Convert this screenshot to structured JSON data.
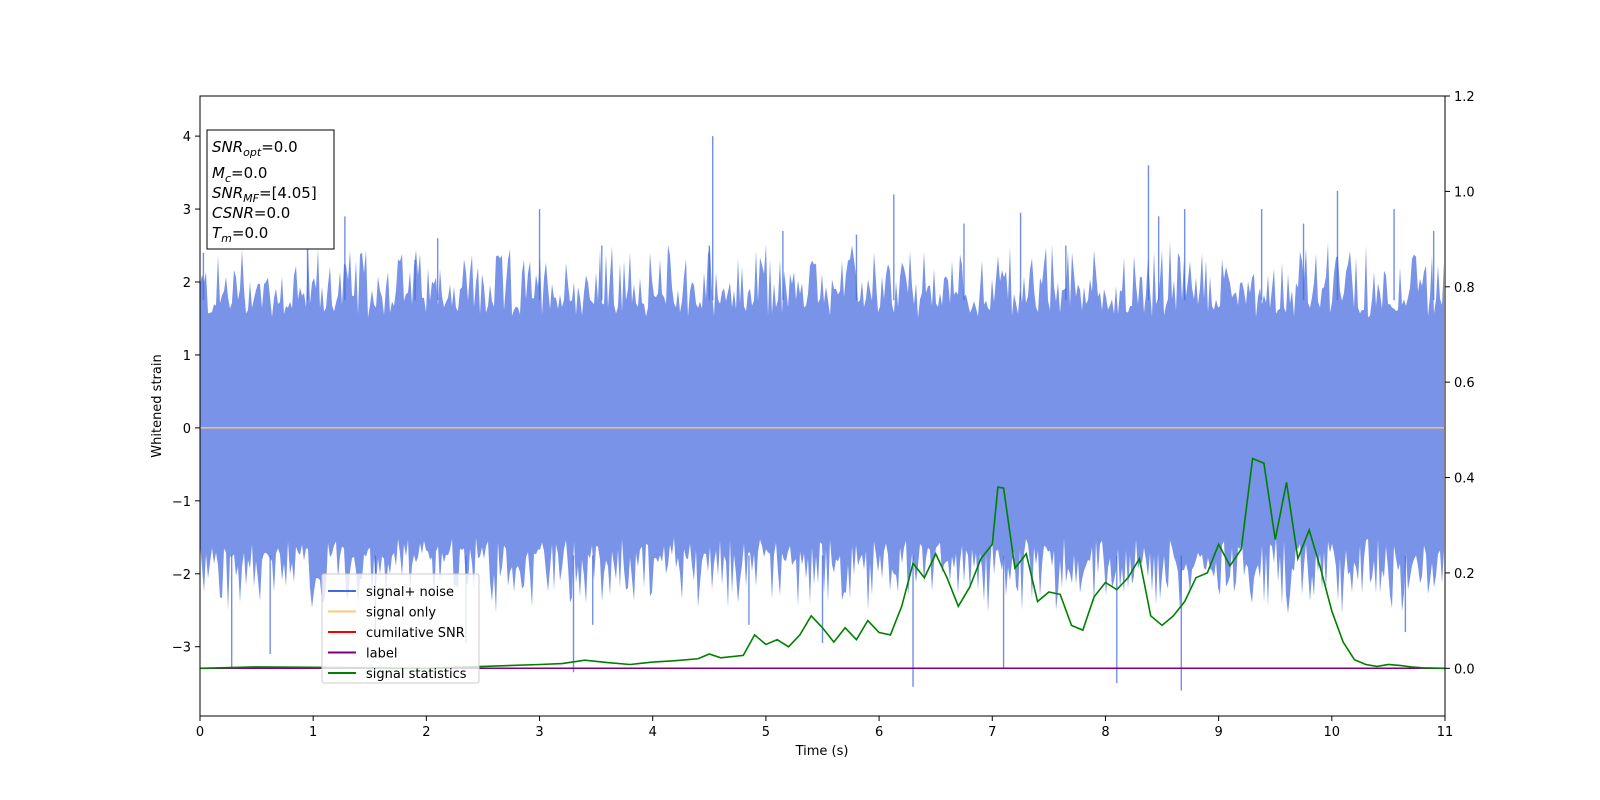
{
  "chart_data": {
    "type": "line",
    "xlabel": "Time (s)",
    "ylabel": "Whitened strain",
    "xlim": [
      0,
      11
    ],
    "ylim": [
      -3.95,
      4.55
    ],
    "y2lim": [
      -0.1,
      1.2
    ],
    "x_ticks": [
      0,
      1,
      2,
      3,
      4,
      5,
      6,
      7,
      8,
      9,
      10,
      11
    ],
    "x_tick_labels": [
      "0",
      "1",
      "2",
      "3",
      "4",
      "5",
      "6",
      "7",
      "8",
      "9",
      "10",
      "11"
    ],
    "y_ticks": [
      -3,
      -2,
      -1,
      0,
      1,
      2,
      3,
      4
    ],
    "y_tick_labels": [
      "−3",
      "−2",
      "−1",
      "0",
      "1",
      "2",
      "3",
      "4"
    ],
    "y2_ticks": [
      0.0,
      0.2,
      0.4,
      0.6,
      0.8,
      1.0,
      1.2
    ],
    "y2_tick_labels": [
      "0.0",
      "0.2",
      "0.4",
      "0.6",
      "0.8",
      "1.0",
      "1.2"
    ],
    "grid": false,
    "legend_placement": "lower-left",
    "info_box": {
      "line1_sym": "SNR",
      "line1_sub": "opt",
      "line1_val": "=0.0",
      "line2_sym": "M",
      "line2_sub": "c",
      "line2_val": "=0.0",
      "line3_sym": "SNR",
      "line3_sub": "MF",
      "line3_val": "=[4.05]",
      "line4_sym": "CSNR",
      "line4_val": "=0.0",
      "line5_sym": "T",
      "line5_sub": "m",
      "line5_val": "=0.0"
    },
    "series": [
      {
        "name": "signal+ noise",
        "axis": "left",
        "color": "#4169e1",
        "style": "noise",
        "envelope_top": 1.75,
        "envelope_bottom": -1.75,
        "spikes": [
          [
            0.03,
            2.4
          ],
          [
            0.28,
            -3.3
          ],
          [
            0.62,
            -3.1
          ],
          [
            0.95,
            2.65
          ],
          [
            1.28,
            2.9
          ],
          [
            1.55,
            -2.8
          ],
          [
            2.1,
            2.6
          ],
          [
            2.35,
            -2.95
          ],
          [
            3.0,
            3.0
          ],
          [
            3.3,
            -3.35
          ],
          [
            3.47,
            -2.7
          ],
          [
            3.55,
            2.5
          ],
          [
            4.5,
            2.5
          ],
          [
            4.53,
            4.0
          ],
          [
            5.15,
            2.7
          ],
          [
            5.5,
            -2.95
          ],
          [
            5.8,
            2.65
          ],
          [
            6.13,
            3.2
          ],
          [
            6.3,
            -3.55
          ],
          [
            6.75,
            2.8
          ],
          [
            7.25,
            2.95
          ],
          [
            7.1,
            -3.3
          ],
          [
            7.65,
            2.5
          ],
          [
            8.1,
            -3.5
          ],
          [
            8.38,
            3.6
          ],
          [
            8.47,
            2.9
          ],
          [
            8.7,
            3.0
          ],
          [
            8.67,
            -3.6
          ],
          [
            9.38,
            3.0
          ],
          [
            9.75,
            2.8
          ],
          [
            10.05,
            3.25
          ],
          [
            10.55,
            3.0
          ],
          [
            10.65,
            -2.8
          ],
          [
            10.9,
            2.7
          ],
          [
            1.9,
            2.3
          ],
          [
            4.85,
            -2.7
          ]
        ]
      },
      {
        "name": "signal only",
        "axis": "left",
        "color": "#ffc878",
        "x": [
          0,
          11
        ],
        "y": [
          0,
          0
        ]
      },
      {
        "name": "cumilative SNR",
        "axis": "right",
        "color": "#ff0000",
        "x": [
          0,
          11
        ],
        "y": [
          0,
          0
        ]
      },
      {
        "name": "label",
        "axis": "right",
        "color": "#800080",
        "x": [
          0,
          11
        ],
        "y": [
          0,
          0
        ]
      },
      {
        "name": "signal statistics",
        "axis": "right",
        "color": "#008000",
        "x": [
          0,
          0.5,
          1.0,
          1.5,
          2.0,
          2.5,
          3.0,
          3.2,
          3.4,
          3.6,
          3.8,
          4.0,
          4.2,
          4.4,
          4.5,
          4.6,
          4.8,
          4.9,
          5.0,
          5.1,
          5.2,
          5.3,
          5.4,
          5.5,
          5.6,
          5.7,
          5.8,
          5.9,
          6.0,
          6.1,
          6.2,
          6.3,
          6.4,
          6.5,
          6.6,
          6.7,
          6.8,
          6.9,
          7.0,
          7.05,
          7.1,
          7.2,
          7.3,
          7.4,
          7.5,
          7.6,
          7.7,
          7.8,
          7.9,
          8.0,
          8.1,
          8.2,
          8.3,
          8.4,
          8.5,
          8.6,
          8.7,
          8.8,
          8.9,
          9.0,
          9.1,
          9.2,
          9.3,
          9.4,
          9.5,
          9.6,
          9.7,
          9.8,
          9.9,
          10.0,
          10.1,
          10.2,
          10.3,
          10.4,
          10.5,
          10.6,
          10.7,
          10.8,
          11.0
        ],
        "y": [
          0.0,
          0.003,
          0.002,
          0.001,
          0.0,
          0.004,
          0.008,
          0.01,
          0.017,
          0.012,
          0.008,
          0.013,
          0.016,
          0.02,
          0.03,
          0.022,
          0.027,
          0.07,
          0.05,
          0.06,
          0.045,
          0.07,
          0.11,
          0.085,
          0.055,
          0.085,
          0.06,
          0.1,
          0.075,
          0.07,
          0.13,
          0.22,
          0.19,
          0.24,
          0.19,
          0.13,
          0.17,
          0.23,
          0.26,
          0.38,
          0.378,
          0.21,
          0.24,
          0.14,
          0.16,
          0.155,
          0.09,
          0.08,
          0.15,
          0.18,
          0.165,
          0.19,
          0.23,
          0.11,
          0.09,
          0.11,
          0.14,
          0.19,
          0.2,
          0.26,
          0.215,
          0.25,
          0.44,
          0.43,
          0.27,
          0.39,
          0.23,
          0.29,
          0.21,
          0.12,
          0.055,
          0.018,
          0.008,
          0.004,
          0.008,
          0.006,
          0.003,
          0.001,
          0.0
        ]
      }
    ]
  }
}
